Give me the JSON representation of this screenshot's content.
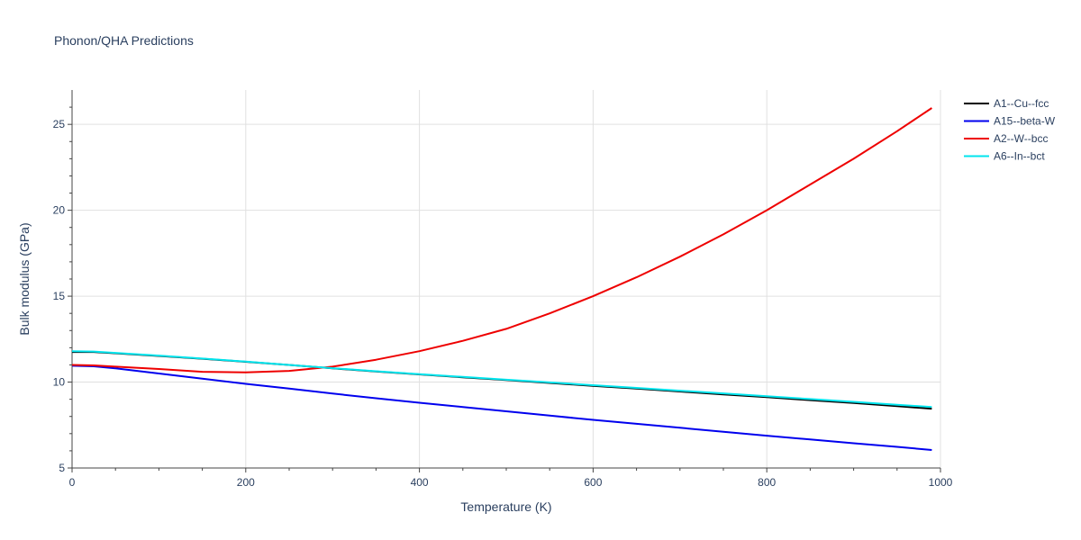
{
  "chart_data": {
    "type": "line",
    "title": "Phonon/QHA Predictions",
    "xlabel": "Temperature (K)",
    "ylabel": "Bulk modulus (GPa)",
    "xlim": [
      0,
      1000
    ],
    "ylim": [
      5,
      27
    ],
    "xticks": [
      0,
      200,
      400,
      600,
      800,
      1000
    ],
    "yticks": [
      5,
      10,
      15,
      20,
      25
    ],
    "grid": true,
    "legend_position": "top-right",
    "series": [
      {
        "name": "A1--Cu--fcc",
        "color": "#000000",
        "x": [
          0,
          25,
          50,
          100,
          150,
          200,
          250,
          300,
          350,
          400,
          450,
          500,
          550,
          600,
          650,
          700,
          750,
          800,
          850,
          900,
          950,
          990
        ],
        "y": [
          11.75,
          11.75,
          11.68,
          11.52,
          11.36,
          11.18,
          11.0,
          10.8,
          10.62,
          10.45,
          10.28,
          10.12,
          9.95,
          9.78,
          9.62,
          9.45,
          9.28,
          9.12,
          8.95,
          8.78,
          8.6,
          8.45
        ]
      },
      {
        "name": "A15--beta-W",
        "color": "#0000ee",
        "x": [
          0,
          25,
          50,
          100,
          150,
          200,
          250,
          300,
          350,
          400,
          450,
          500,
          550,
          600,
          650,
          700,
          750,
          800,
          850,
          900,
          950,
          990
        ],
        "y": [
          10.95,
          10.92,
          10.8,
          10.5,
          10.2,
          9.9,
          9.62,
          9.33,
          9.06,
          8.8,
          8.55,
          8.3,
          8.05,
          7.8,
          7.57,
          7.34,
          7.11,
          6.88,
          6.66,
          6.44,
          6.23,
          6.05
        ]
      },
      {
        "name": "A2--W--bcc",
        "color": "#ee0000",
        "x": [
          0,
          25,
          50,
          100,
          150,
          200,
          250,
          300,
          350,
          400,
          450,
          500,
          550,
          600,
          650,
          700,
          750,
          800,
          850,
          900,
          950,
          990
        ],
        "y": [
          11.0,
          10.97,
          10.9,
          10.76,
          10.6,
          10.57,
          10.65,
          10.9,
          11.3,
          11.8,
          12.4,
          13.1,
          14.0,
          15.0,
          16.1,
          17.3,
          18.6,
          20.0,
          21.5,
          23.0,
          24.6,
          25.95
        ]
      },
      {
        "name": "A6--In--bct",
        "color": "#00e5ee",
        "x": [
          0,
          25,
          50,
          100,
          150,
          200,
          250,
          300,
          350,
          400,
          450,
          500,
          550,
          600,
          650,
          700,
          750,
          800,
          850,
          900,
          950,
          990
        ],
        "y": [
          11.8,
          11.78,
          11.7,
          11.54,
          11.37,
          11.19,
          11.0,
          10.81,
          10.63,
          10.46,
          10.3,
          10.14,
          9.98,
          9.82,
          9.66,
          9.5,
          9.34,
          9.18,
          9.01,
          8.85,
          8.68,
          8.55
        ]
      }
    ]
  }
}
